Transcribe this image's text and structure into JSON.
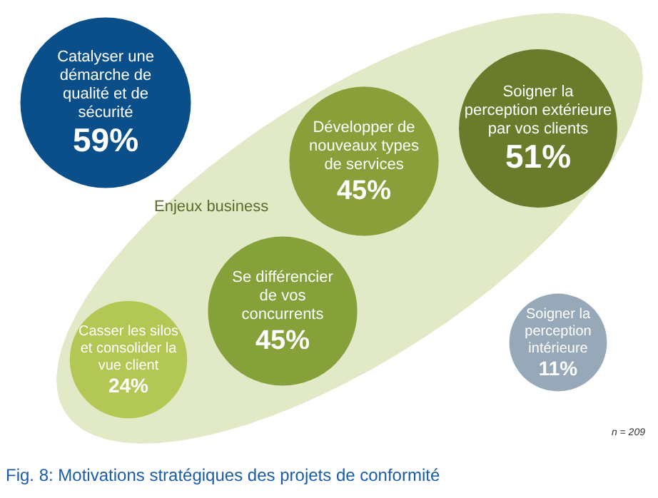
{
  "chart_data": {
    "type": "other",
    "title": "Fig. 8:  Motivations stratégiques des projets de conformité",
    "categories": [
      "Catalyser une\ndémarche de\nqualité et de\nsécurité",
      "Soigner la\nperception extérieure\npar vos clients",
      "Développer de\nnouveaux types\nde services",
      "Se différencier\nde vos\nconcurrents",
      "Casser les silos\net consolider la\nvue client",
      "Soigner la\nperception\nintérieure"
    ],
    "values": [
      59,
      51,
      45,
      45,
      24,
      11
    ],
    "value_labels": [
      "59%",
      "51%",
      "45%",
      "45%",
      "24%",
      "11%"
    ],
    "colors": [
      "#0b4f8a",
      "#6b7b2c",
      "#8a9e3a",
      "#86a03a",
      "#b3c755",
      "#97a9b9"
    ],
    "annotations": [
      "Enjeux business",
      "n = 209"
    ]
  }
}
